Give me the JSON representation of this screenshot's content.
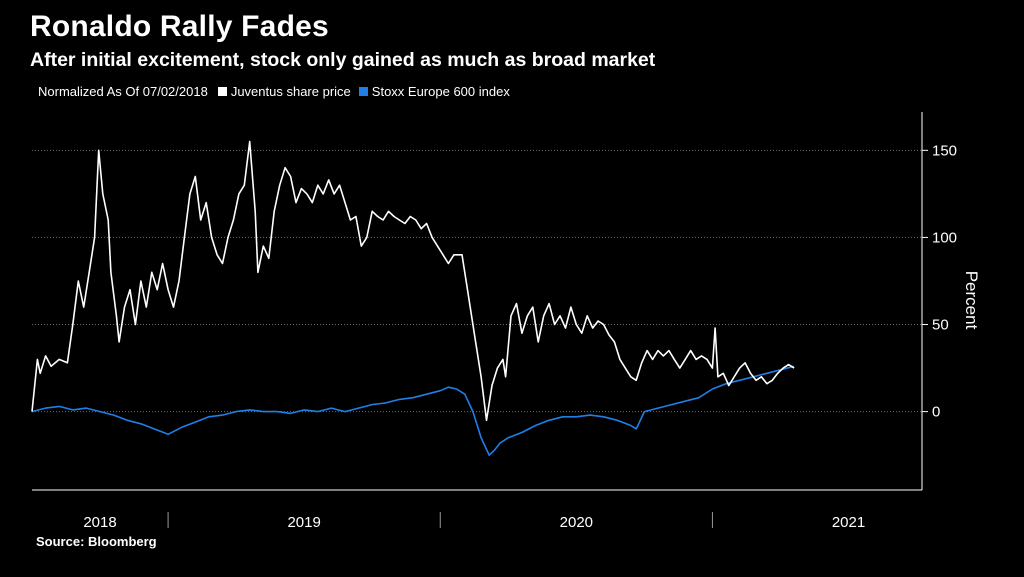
{
  "chart_data": {
    "type": "line",
    "title": "Ronaldo Rally Fades",
    "subtitle": "After initial excitement, stock only gained as much as broad market",
    "legend_note": "Normalized As Of 07/02/2018",
    "ylabel": "Percent",
    "ylim": [
      -45,
      172
    ],
    "y_ticks": [
      0,
      50,
      100,
      150
    ],
    "x_range": [
      2018.5,
      2021.77
    ],
    "x_ticks": [
      {
        "label": "2018",
        "at": 2018.75
      },
      {
        "label": "2019",
        "at": 2019.5
      },
      {
        "label": "2020",
        "at": 2020.5
      },
      {
        "label": "2021",
        "at": 2021.5
      }
    ],
    "x_dividers": [
      2019.0,
      2020.0,
      2021.0
    ],
    "grid": true,
    "series": [
      {
        "name": "Juventus share price",
        "color": "#ffffff",
        "points": [
          [
            2018.5,
            0
          ],
          [
            2018.52,
            30
          ],
          [
            2018.53,
            22
          ],
          [
            2018.55,
            32
          ],
          [
            2018.57,
            26
          ],
          [
            2018.6,
            30
          ],
          [
            2018.63,
            28
          ],
          [
            2018.65,
            50
          ],
          [
            2018.67,
            75
          ],
          [
            2018.69,
            60
          ],
          [
            2018.71,
            80
          ],
          [
            2018.73,
            100
          ],
          [
            2018.745,
            150
          ],
          [
            2018.76,
            125
          ],
          [
            2018.78,
            110
          ],
          [
            2018.79,
            80
          ],
          [
            2018.81,
            55
          ],
          [
            2018.82,
            40
          ],
          [
            2018.84,
            60
          ],
          [
            2018.86,
            70
          ],
          [
            2018.88,
            50
          ],
          [
            2018.9,
            75
          ],
          [
            2018.92,
            60
          ],
          [
            2018.94,
            80
          ],
          [
            2018.96,
            70
          ],
          [
            2018.98,
            85
          ],
          [
            2019.0,
            70
          ],
          [
            2019.02,
            60
          ],
          [
            2019.04,
            75
          ],
          [
            2019.06,
            100
          ],
          [
            2019.08,
            125
          ],
          [
            2019.1,
            135
          ],
          [
            2019.12,
            110
          ],
          [
            2019.14,
            120
          ],
          [
            2019.16,
            100
          ],
          [
            2019.18,
            90
          ],
          [
            2019.2,
            85
          ],
          [
            2019.22,
            100
          ],
          [
            2019.24,
            110
          ],
          [
            2019.26,
            125
          ],
          [
            2019.28,
            130
          ],
          [
            2019.3,
            155
          ],
          [
            2019.32,
            115
          ],
          [
            2019.33,
            80
          ],
          [
            2019.35,
            95
          ],
          [
            2019.37,
            88
          ],
          [
            2019.39,
            115
          ],
          [
            2019.41,
            130
          ],
          [
            2019.43,
            140
          ],
          [
            2019.45,
            135
          ],
          [
            2019.47,
            120
          ],
          [
            2019.49,
            128
          ],
          [
            2019.51,
            125
          ],
          [
            2019.53,
            120
          ],
          [
            2019.55,
            130
          ],
          [
            2019.57,
            125
          ],
          [
            2019.59,
            133
          ],
          [
            2019.61,
            125
          ],
          [
            2019.63,
            130
          ],
          [
            2019.65,
            120
          ],
          [
            2019.67,
            110
          ],
          [
            2019.69,
            112
          ],
          [
            2019.71,
            95
          ],
          [
            2019.73,
            100
          ],
          [
            2019.75,
            115
          ],
          [
            2019.77,
            112
          ],
          [
            2019.79,
            110
          ],
          [
            2019.81,
            115
          ],
          [
            2019.83,
            112
          ],
          [
            2019.85,
            110
          ],
          [
            2019.87,
            108
          ],
          [
            2019.89,
            112
          ],
          [
            2019.91,
            110
          ],
          [
            2019.93,
            105
          ],
          [
            2019.95,
            108
          ],
          [
            2019.97,
            100
          ],
          [
            2019.99,
            95
          ],
          [
            2020.01,
            90
          ],
          [
            2020.03,
            85
          ],
          [
            2020.05,
            90
          ],
          [
            2020.08,
            90
          ],
          [
            2020.1,
            70
          ],
          [
            2020.13,
            40
          ],
          [
            2020.15,
            20
          ],
          [
            2020.17,
            -5
          ],
          [
            2020.19,
            15
          ],
          [
            2020.21,
            25
          ],
          [
            2020.23,
            30
          ],
          [
            2020.24,
            20
          ],
          [
            2020.26,
            55
          ],
          [
            2020.28,
            62
          ],
          [
            2020.3,
            45
          ],
          [
            2020.32,
            55
          ],
          [
            2020.34,
            60
          ],
          [
            2020.36,
            40
          ],
          [
            2020.38,
            55
          ],
          [
            2020.4,
            62
          ],
          [
            2020.42,
            50
          ],
          [
            2020.44,
            55
          ],
          [
            2020.46,
            48
          ],
          [
            2020.48,
            60
          ],
          [
            2020.5,
            50
          ],
          [
            2020.52,
            45
          ],
          [
            2020.54,
            55
          ],
          [
            2020.56,
            48
          ],
          [
            2020.58,
            52
          ],
          [
            2020.6,
            50
          ],
          [
            2020.62,
            44
          ],
          [
            2020.64,
            40
          ],
          [
            2020.66,
            30
          ],
          [
            2020.68,
            25
          ],
          [
            2020.7,
            20
          ],
          [
            2020.72,
            18
          ],
          [
            2020.74,
            28
          ],
          [
            2020.76,
            35
          ],
          [
            2020.78,
            30
          ],
          [
            2020.8,
            35
          ],
          [
            2020.82,
            32
          ],
          [
            2020.84,
            35
          ],
          [
            2020.86,
            30
          ],
          [
            2020.88,
            25
          ],
          [
            2020.9,
            30
          ],
          [
            2020.92,
            35
          ],
          [
            2020.94,
            30
          ],
          [
            2020.96,
            32
          ],
          [
            2020.98,
            30
          ],
          [
            2021.0,
            25
          ],
          [
            2021.01,
            48
          ],
          [
            2021.02,
            20
          ],
          [
            2021.04,
            22
          ],
          [
            2021.06,
            15
          ],
          [
            2021.08,
            20
          ],
          [
            2021.1,
            25
          ],
          [
            2021.12,
            28
          ],
          [
            2021.14,
            22
          ],
          [
            2021.16,
            18
          ],
          [
            2021.18,
            20
          ],
          [
            2021.2,
            16
          ],
          [
            2021.22,
            18
          ],
          [
            2021.24,
            22
          ],
          [
            2021.26,
            25
          ],
          [
            2021.28,
            27
          ],
          [
            2021.3,
            25
          ]
        ]
      },
      {
        "name": "Stoxx Europe 600 index",
        "color": "#1f7fe8",
        "points": [
          [
            2018.5,
            0
          ],
          [
            2018.55,
            2
          ],
          [
            2018.6,
            3
          ],
          [
            2018.65,
            1
          ],
          [
            2018.7,
            2
          ],
          [
            2018.75,
            0
          ],
          [
            2018.8,
            -2
          ],
          [
            2018.85,
            -5
          ],
          [
            2018.9,
            -7
          ],
          [
            2018.95,
            -10
          ],
          [
            2019.0,
            -13
          ],
          [
            2019.05,
            -9
          ],
          [
            2019.1,
            -6
          ],
          [
            2019.15,
            -3
          ],
          [
            2019.2,
            -2
          ],
          [
            2019.25,
            0
          ],
          [
            2019.3,
            1
          ],
          [
            2019.35,
            0
          ],
          [
            2019.4,
            0
          ],
          [
            2019.45,
            -1
          ],
          [
            2019.5,
            1
          ],
          [
            2019.55,
            0
          ],
          [
            2019.6,
            2
          ],
          [
            2019.65,
            0
          ],
          [
            2019.7,
            2
          ],
          [
            2019.75,
            4
          ],
          [
            2019.8,
            5
          ],
          [
            2019.85,
            7
          ],
          [
            2019.9,
            8
          ],
          [
            2019.95,
            10
          ],
          [
            2020.0,
            12
          ],
          [
            2020.03,
            14
          ],
          [
            2020.06,
            13
          ],
          [
            2020.09,
            10
          ],
          [
            2020.12,
            0
          ],
          [
            2020.15,
            -15
          ],
          [
            2020.18,
            -25
          ],
          [
            2020.2,
            -22
          ],
          [
            2020.22,
            -18
          ],
          [
            2020.25,
            -15
          ],
          [
            2020.3,
            -12
          ],
          [
            2020.35,
            -8
          ],
          [
            2020.4,
            -5
          ],
          [
            2020.45,
            -3
          ],
          [
            2020.5,
            -3
          ],
          [
            2020.55,
            -2
          ],
          [
            2020.6,
            -3
          ],
          [
            2020.65,
            -5
          ],
          [
            2020.7,
            -8
          ],
          [
            2020.72,
            -10
          ],
          [
            2020.75,
            0
          ],
          [
            2020.8,
            2
          ],
          [
            2020.85,
            4
          ],
          [
            2020.9,
            6
          ],
          [
            2020.95,
            8
          ],
          [
            2021.0,
            13
          ],
          [
            2021.05,
            16
          ],
          [
            2021.1,
            18
          ],
          [
            2021.15,
            20
          ],
          [
            2021.2,
            22
          ],
          [
            2021.25,
            24
          ],
          [
            2021.3,
            26
          ]
        ]
      }
    ]
  },
  "source": "Source: Bloomberg"
}
